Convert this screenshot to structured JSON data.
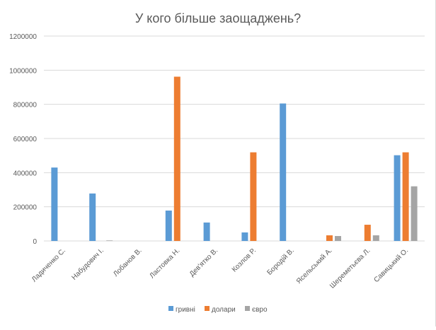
{
  "chart_data": {
    "type": "bar",
    "title": "У кого більше заощаджень?",
    "xlabel": "",
    "ylabel": "",
    "ylim": [
      0,
      1200000
    ],
    "yticks": [
      0,
      200000,
      400000,
      600000,
      800000,
      1000000,
      1200000
    ],
    "ytick_labels": [
      "0",
      "200000",
      "400000",
      "600000",
      "800000",
      "1000000",
      "1200000"
    ],
    "grid": true,
    "legend_position": "bottom",
    "categories": [
      "Ладиченко С.",
      "Набудович І.",
      "Лобанов В.",
      "Ластовка Н.",
      "Дев'ятко В.",
      "Козлов Р.",
      "Бородій В.",
      "Ясельський А.",
      "Шереметьєва Л.",
      "Савицький О."
    ],
    "series": [
      {
        "name": "гривні",
        "color": "#5b9bd5",
        "values": [
          430000,
          278000,
          0,
          178000,
          108000,
          50000,
          805000,
          0,
          0,
          502000
        ]
      },
      {
        "name": "долари",
        "color": "#ed7d31",
        "values": [
          0,
          0,
          0,
          962000,
          0,
          519000,
          0,
          33000,
          95000,
          519000
        ]
      },
      {
        "name": "євро",
        "color": "#a5a5a5",
        "values": [
          0,
          3000,
          0,
          0,
          0,
          0,
          0,
          29000,
          33000,
          320000
        ]
      }
    ]
  }
}
